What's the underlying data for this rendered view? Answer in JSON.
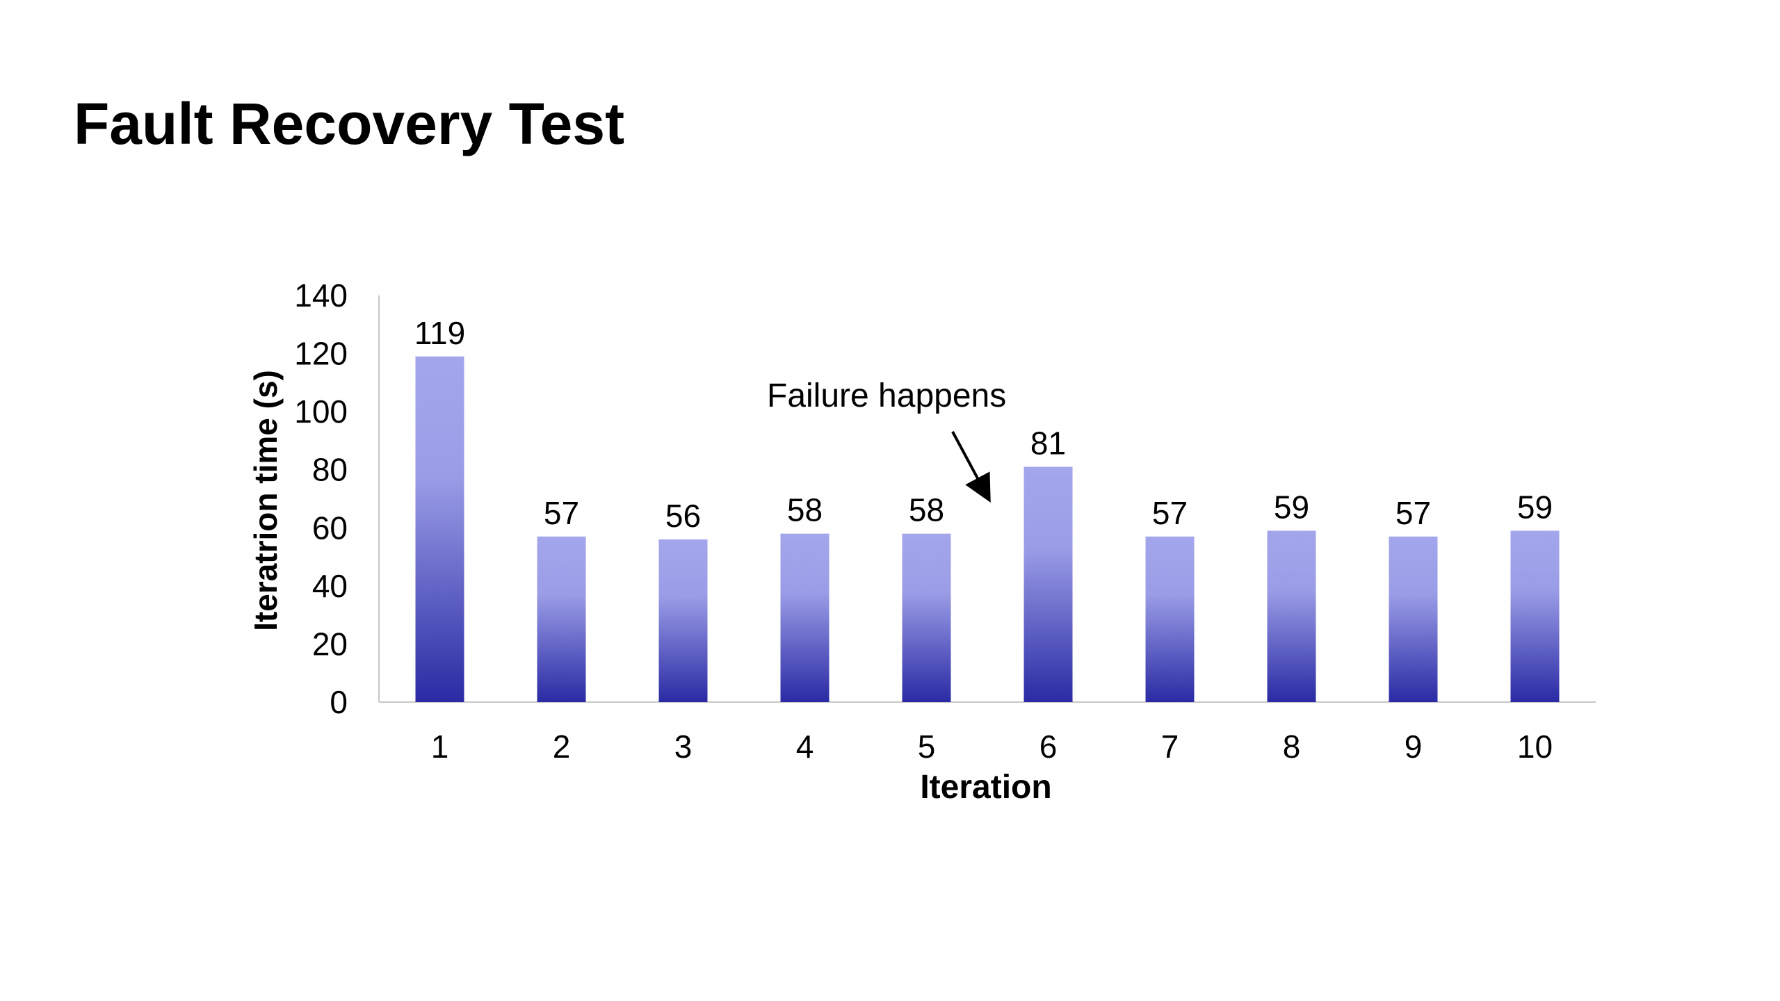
{
  "slide": {
    "title": "Fault Recovery Test"
  },
  "chart_data": {
    "type": "bar",
    "categories": [
      "1",
      "2",
      "3",
      "4",
      "5",
      "6",
      "7",
      "8",
      "9",
      "10"
    ],
    "values": [
      119,
      57,
      56,
      58,
      58,
      81,
      57,
      59,
      57,
      59
    ],
    "data_labels": [
      "119",
      "57",
      "56",
      "58",
      "58",
      "81",
      "57",
      "59",
      "57",
      "59"
    ],
    "xlabel": "Iteration",
    "ylabel": "Iteratrion time (s)",
    "ylim": [
      0,
      140
    ],
    "yticks": [
      0,
      20,
      40,
      60,
      80,
      100,
      120,
      140
    ],
    "grid": false,
    "legend": false,
    "bar_gradient": {
      "top": "#a4a6ec",
      "bottom": "#2a2aa4"
    },
    "axis_color": "#c8c8c8",
    "annotation": {
      "text": "Failure happens",
      "arrow_points_between": [
        "5",
        "6"
      ]
    }
  }
}
